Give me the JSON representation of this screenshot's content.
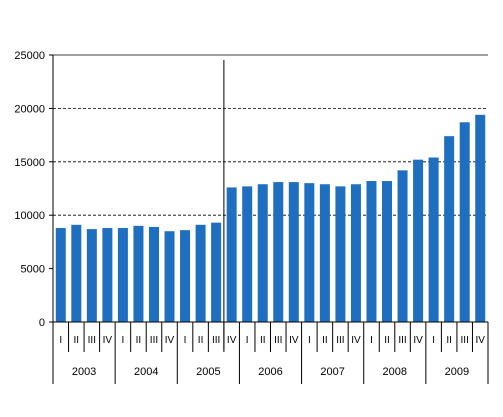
{
  "chart_data": {
    "type": "bar",
    "title": "",
    "xlabel": "",
    "ylabel": "",
    "ylim": [
      0,
      25000
    ],
    "y_ticks": [
      0,
      5000,
      10000,
      15000,
      20000,
      25000
    ],
    "y_tick_labels": [
      "0",
      "5000",
      "10000",
      "15000",
      "20000",
      "25000"
    ],
    "grid": "horizontal dashed at 10000, 15000, 20000",
    "break_after_category": "2005 III",
    "categories": [
      "2003 I",
      "2003 II",
      "2003 III",
      "2003 IV",
      "2004 I",
      "2004 II",
      "2004 III",
      "2004 IV",
      "2005 I",
      "2005 II",
      "2005 III",
      "2005 IV",
      "2006 I",
      "2006 II",
      "2006 III",
      "2006 IV",
      "2007 I",
      "2007 II",
      "2007 III",
      "2007 IV",
      "2008 I",
      "2008 II",
      "2008 III",
      "2008 IV",
      "2009 I",
      "2009 II",
      "2009 III",
      "2009 IV"
    ],
    "quarter_labels": [
      "I",
      "II",
      "III",
      "IV",
      "I",
      "II",
      "III",
      "IV",
      "I",
      "II",
      "III",
      "IV",
      "I",
      "II",
      "III",
      "IV",
      "I",
      "II",
      "III",
      "IV",
      "I",
      "II",
      "III",
      "IV",
      "I",
      "II",
      "III",
      "IV"
    ],
    "years": [
      "2003",
      "2004",
      "2005",
      "2006",
      "2007",
      "2008",
      "2009"
    ],
    "series": [
      {
        "values": [
          8800,
          9100,
          8700,
          8800,
          8800,
          9000,
          8900,
          8500,
          8600,
          9100,
          9300,
          12600,
          12700,
          12900,
          13100,
          13100,
          13000,
          12900,
          12700,
          12900,
          13200,
          13200,
          14200,
          15200,
          15400,
          17400,
          18700,
          19400
        ],
        "color": "#1f6fc0"
      }
    ]
  }
}
